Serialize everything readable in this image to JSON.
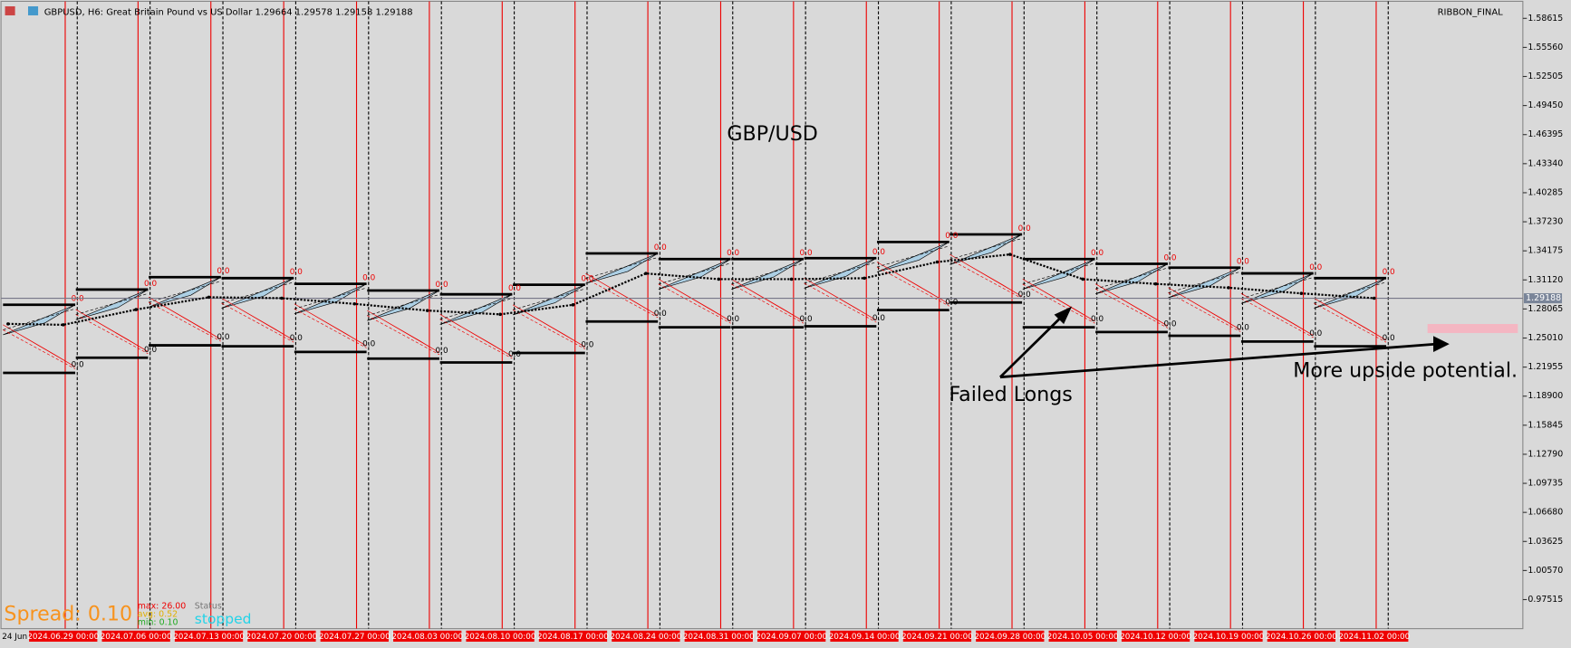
{
  "header": {
    "symbol_info": "GBPUSD, H6:  Great Britain Pound vs US Dollar  1.29664 1.29578 1.29158 1.29188",
    "indicator": "RIBBON_FINAL"
  },
  "chart_data": {
    "type": "line",
    "title": "GBP/USD",
    "annotations": [
      "Failed Longs",
      "More upside potential."
    ],
    "categories": [
      "24 Jun",
      "2024.06.29 00:00",
      "2024.07.06 00:00",
      "2024.07.13 00:00",
      "2024.07.20 00:00",
      "2024.07.27 00:00",
      "2024.08.03 00:00",
      "2024.08.10 00:00",
      "2024.08.17 00:00",
      "2024.08.24 00:00",
      "2024.08.31 00:00",
      "2024.09.07 00:00",
      "2024.09.14 00:00",
      "2024.09.21 00:00",
      "2024.09.28 00:00",
      "2024.10.05 00:00",
      "2024.10.12 00:00",
      "2024.10.19 00:00",
      "2024.10.26 00:00",
      "2024.11.02 00:00"
    ],
    "series": [
      {
        "name": "GBPUSD",
        "color": "#000000",
        "values": [
          1.265,
          1.264,
          1.28,
          1.293,
          1.292,
          1.286,
          1.279,
          1.275,
          1.285,
          1.318,
          1.312,
          1.312,
          1.313,
          1.33,
          1.338,
          1.312,
          1.307,
          1.303,
          1.297,
          1.292
        ]
      }
    ],
    "current_price": {
      "value": 1.29188,
      "label": "1.29188"
    },
    "fib_label": "0.0",
    "ylim": [
      0.97515,
      1.58615
    ],
    "yticks": [
      {
        "value": 1.58615,
        "label": "1.58615"
      },
      {
        "value": 1.5556,
        "label": "1.55560"
      },
      {
        "value": 1.52505,
        "label": "1.52505"
      },
      {
        "value": 1.4945,
        "label": "1.49450"
      },
      {
        "value": 1.46395,
        "label": "1.46395"
      },
      {
        "value": 1.4334,
        "label": "1.43340"
      },
      {
        "value": 1.40285,
        "label": "1.40285"
      },
      {
        "value": 1.3723,
        "label": "1.37230"
      },
      {
        "value": 1.34175,
        "label": "1.34175"
      },
      {
        "value": 1.3112,
        "label": "1.31120"
      },
      {
        "value": 1.28065,
        "label": "1.28065"
      },
      {
        "value": 1.2501,
        "label": "1.25010"
      },
      {
        "value": 1.21955,
        "label": "1.21955"
      },
      {
        "value": 1.189,
        "label": "1.18900"
      },
      {
        "value": 1.15845,
        "label": "1.15845"
      },
      {
        "value": 1.1279,
        "label": "1.12790"
      },
      {
        "value": 1.09735,
        "label": "1.09735"
      },
      {
        "value": 1.0668,
        "label": "1.06680"
      },
      {
        "value": 1.03625,
        "label": "1.03625"
      },
      {
        "value": 1.0057,
        "label": "1.00570"
      },
      {
        "value": 0.97515,
        "label": "0.97515"
      }
    ]
  },
  "status_panel": {
    "spread": "Spread: 0.10",
    "max": "max: 26.00",
    "avg": "avg: 0.52",
    "min": "min: 0.10",
    "status_label": "Status",
    "status": "stopped"
  }
}
